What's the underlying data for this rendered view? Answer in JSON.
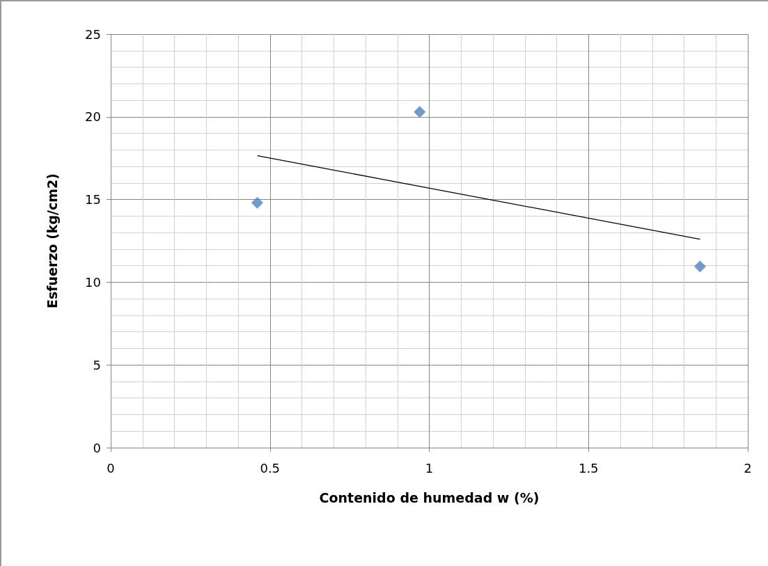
{
  "chart_data": {
    "type": "scatter",
    "xlabel": "Contenido de humedad w (%)",
    "ylabel": "Esfuerzo (kg/cm2)",
    "xlim": [
      0,
      2
    ],
    "xticks": [
      0,
      0.5,
      1,
      1.5,
      2
    ],
    "ylim": [
      0,
      25
    ],
    "yticks": [
      0,
      5,
      10,
      15,
      20,
      25
    ],
    "grid": true,
    "series": [
      {
        "type": "scatter",
        "x": [
          0.46,
          0.97,
          1.85
        ],
        "values": [
          14.8,
          20.3,
          10.95
        ],
        "color": "#4f81bd",
        "marker": "diamond"
      },
      {
        "type": "line",
        "x": [
          0.46,
          1.85
        ],
        "values": [
          17.65,
          12.6
        ],
        "color": "#000000",
        "marker": "none",
        "line_style": "solid"
      }
    ]
  }
}
